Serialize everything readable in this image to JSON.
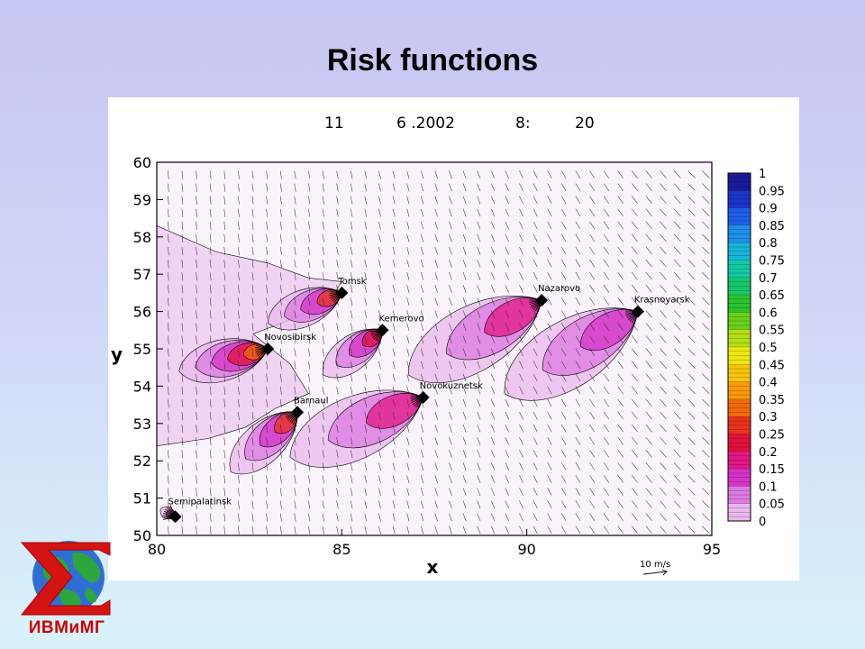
{
  "slide": {
    "title": "Risk functions"
  },
  "logo": {
    "text": "ИВМиМГ"
  },
  "chart_data": {
    "type": "contour",
    "header": {
      "day": "11",
      "date": "6 .2002",
      "hour": "8:",
      "minute": "20"
    },
    "xlabel": "x",
    "ylabel": "y",
    "xlim": [
      80,
      95
    ],
    "ylim": [
      50,
      60
    ],
    "x_ticks": [
      "80",
      "85",
      "90",
      "95"
    ],
    "y_ticks": [
      "50",
      "51",
      "52",
      "53",
      "54",
      "55",
      "56",
      "57",
      "58",
      "59",
      "60"
    ],
    "wind_scale_label": "10 m/s",
    "colorbar": {
      "labels": [
        "1",
        "0.95",
        "0.9",
        "0.85",
        "0.8",
        "0.75",
        "0.7",
        "0.65",
        "0.6",
        "0.55",
        "0.5",
        "0.45",
        "0.4",
        "0.35",
        "0.3",
        "0.25",
        "0.2",
        "0.15",
        "0.1",
        "0.05",
        "0"
      ],
      "colors": [
        "#1a1a9a",
        "#1b34c8",
        "#1e5fe6",
        "#1f8ee8",
        "#17b5d8",
        "#12c9a5",
        "#16c76a",
        "#2bc42c",
        "#6bd11b",
        "#b5de14",
        "#eee80f",
        "#f7c40c",
        "#f89a0a",
        "#f26a0c",
        "#e8321c",
        "#e4103c",
        "#e01784",
        "#d433c6",
        "#dc7ae0",
        "#eab8ee",
        "#f7e6f8"
      ]
    },
    "cities": [
      {
        "name": "Tomsk",
        "x": 85.0,
        "y": 56.5
      },
      {
        "name": "Kemerovo",
        "x": 86.1,
        "y": 55.5
      },
      {
        "name": "Novosibirsk",
        "x": 83.0,
        "y": 55.0
      },
      {
        "name": "Barnaul",
        "x": 83.8,
        "y": 53.3
      },
      {
        "name": "Novokuznetsk",
        "x": 87.2,
        "y": 53.7
      },
      {
        "name": "Nazarovo",
        "x": 90.4,
        "y": 56.3
      },
      {
        "name": "Krasnoyarsk",
        "x": 93.0,
        "y": 56.0
      },
      {
        "name": "Semipalatinsk",
        "x": 80.5,
        "y": 50.5
      }
    ],
    "risk_plumes": [
      {
        "source": "Tomsk",
        "x": 85.0,
        "y": 56.5,
        "dx": -2.0,
        "dy": -0.8,
        "levels": [
          0.3,
          0.15,
          0.1,
          0.05
        ]
      },
      {
        "source": "Kemerovo",
        "x": 86.1,
        "y": 55.5,
        "dx": -1.6,
        "dy": -1.2,
        "levels": [
          0.25,
          0.15,
          0.1,
          0.05
        ]
      },
      {
        "source": "Novosibirsk",
        "x": 83.0,
        "y": 55.0,
        "dx": -2.4,
        "dy": -0.6,
        "levels": [
          0.35,
          0.25,
          0.15,
          0.1,
          0.05
        ]
      },
      {
        "source": "Barnaul",
        "x": 83.8,
        "y": 53.3,
        "dx": -1.8,
        "dy": -1.6,
        "levels": [
          0.3,
          0.15,
          0.1,
          0.05
        ]
      },
      {
        "source": "Novokuznetsk",
        "x": 87.2,
        "y": 53.7,
        "dx": -3.6,
        "dy": -1.6,
        "levels": [
          0.2,
          0.1,
          0.05
        ]
      },
      {
        "source": "Nazarovo",
        "x": 90.4,
        "y": 56.3,
        "dx": -3.6,
        "dy": -2.0,
        "levels": [
          0.2,
          0.1,
          0.05
        ]
      },
      {
        "source": "Krasnoyarsk",
        "x": 93.0,
        "y": 56.0,
        "dx": -3.6,
        "dy": -2.2,
        "levels": [
          0.15,
          0.1,
          0.05
        ]
      },
      {
        "source": "Semipalatinsk",
        "x": 80.5,
        "y": 50.5,
        "dx": -0.4,
        "dy": 0.2,
        "levels": [
          0.2,
          0.05
        ]
      }
    ],
    "background_risk": {
      "level": 0.05,
      "region": "north-west"
    },
    "wind_field": {
      "shown": true,
      "direction": "southward, turning south-east in the east"
    }
  }
}
